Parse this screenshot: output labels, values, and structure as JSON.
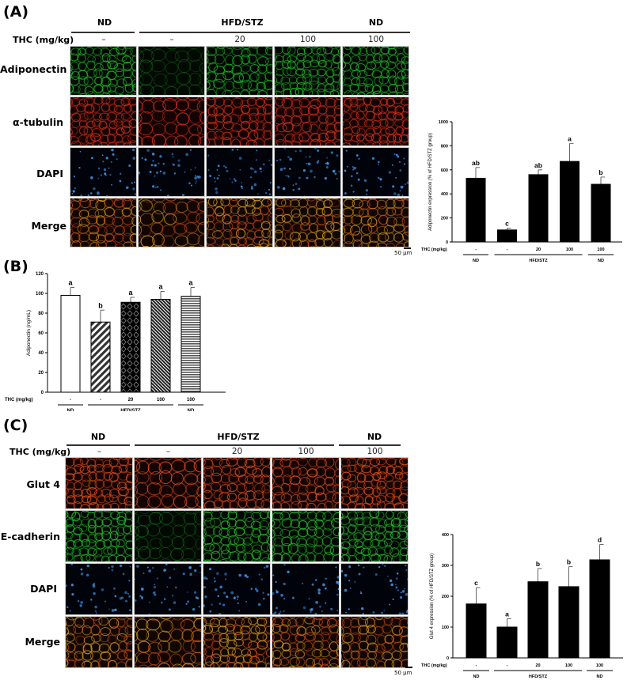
{
  "panel_a": {
    "label": "(A)",
    "groups": [
      {
        "label": "ND"
      },
      {
        "label": "HFD/STZ"
      },
      {
        "label": "ND"
      }
    ],
    "thc_label": "THC (mg/kg)",
    "doses": [
      "–",
      "–",
      "20",
      "100",
      "100"
    ],
    "rows": [
      {
        "label": "Adiponectin",
        "stain": "green",
        "color": "#1fbf2a"
      },
      {
        "label": "α-tubulin",
        "stain": "red",
        "color": "#d8301a"
      },
      {
        "label": "DAPI",
        "stain": "blue",
        "color": "#3a8fe0"
      },
      {
        "label": "Merge",
        "stain": "merge",
        "color": "#c89a2a"
      }
    ],
    "scale_bar": "50 μm"
  },
  "panel_b": {
    "label": "(B)"
  },
  "panel_c": {
    "label": "(C)",
    "groups": [
      {
        "label": "ND"
      },
      {
        "label": "HFD/STZ"
      },
      {
        "label": "ND"
      }
    ],
    "thc_label": "THC (mg/kg)",
    "doses": [
      "–",
      "–",
      "20",
      "100",
      "100"
    ],
    "rows": [
      {
        "label": "Glut 4",
        "stain": "red",
        "color": "#e2501c"
      },
      {
        "label": "E-cadherin",
        "stain": "green",
        "color": "#27c22e"
      },
      {
        "label": "DAPI",
        "stain": "blue",
        "color": "#3a8fe0"
      },
      {
        "label": "Merge",
        "stain": "merge",
        "color": "#e08a2a"
      }
    ],
    "scale_bar": "50 μm"
  },
  "chart_data": [
    {
      "id": "A-bar",
      "type": "bar",
      "title": "",
      "xlabel": "THC (mg/kg)",
      "ylabel": "Adiponectin expression (% of HFD/STZ group)",
      "categories": [
        "–",
        "–",
        "20",
        "100",
        "100"
      ],
      "category_groups": [
        {
          "label": "ND",
          "span": [
            0,
            0
          ]
        },
        {
          "label": "HFD/STZ",
          "span": [
            1,
            3
          ]
        },
        {
          "label": "ND",
          "span": [
            4,
            4
          ]
        }
      ],
      "values": [
        530,
        100,
        560,
        670,
        480
      ],
      "errors": [
        90,
        15,
        40,
        150,
        60
      ],
      "significance": [
        "ab",
        "c",
        "ab",
        "a",
        "b"
      ],
      "ylim": [
        0,
        1000
      ],
      "yticks": [
        0,
        200,
        400,
        600,
        800,
        1000
      ],
      "bar_fill": [
        "#000000",
        "#000000",
        "#000000",
        "#000000",
        "#000000"
      ],
      "grid": false
    },
    {
      "id": "B-bar",
      "type": "bar",
      "title": "",
      "xlabel": "THC (mg/kg)",
      "ylabel": "Adiponectin (ng/mL)",
      "categories": [
        "–",
        "–",
        "20",
        "100",
        "100"
      ],
      "category_groups": [
        {
          "label": "ND",
          "span": [
            0,
            0
          ]
        },
        {
          "label": "HFD/STZ",
          "span": [
            1,
            3
          ]
        },
        {
          "label": "ND",
          "span": [
            4,
            4
          ]
        }
      ],
      "values": [
        98,
        71,
        91,
        94,
        97
      ],
      "errors": [
        8,
        12,
        5,
        8,
        9
      ],
      "significance": [
        "a",
        "b",
        "a",
        "a",
        "a"
      ],
      "ylim": [
        0,
        120
      ],
      "yticks": [
        0,
        20,
        40,
        60,
        80,
        100,
        120
      ],
      "bar_patterns": [
        "white",
        "diagonal-hatch",
        "black-diamonds",
        "dense-diagonal",
        "horizontal-stripes"
      ],
      "grid": false
    },
    {
      "id": "C-bar",
      "type": "bar",
      "title": "",
      "xlabel": "THC (mg/kg)",
      "ylabel": "Glut 4 expression (% of HFD/STZ group)",
      "categories": [
        "–",
        "–",
        "20",
        "100",
        "100"
      ],
      "category_groups": [
        {
          "label": "ND",
          "span": [
            0,
            0
          ]
        },
        {
          "label": "HFD/STZ",
          "span": [
            1,
            3
          ]
        },
        {
          "label": "ND",
          "span": [
            4,
            4
          ]
        }
      ],
      "values": [
        175,
        100,
        247,
        231,
        318
      ],
      "errors": [
        53,
        27,
        43,
        65,
        50
      ],
      "significance": [
        "c",
        "a",
        "b",
        "b",
        "d"
      ],
      "ylim": [
        0,
        400
      ],
      "yticks": [
        0,
        100,
        200,
        300,
        400
      ],
      "bar_fill": [
        "#000000",
        "#000000",
        "#000000",
        "#000000",
        "#000000"
      ],
      "grid": false
    }
  ]
}
